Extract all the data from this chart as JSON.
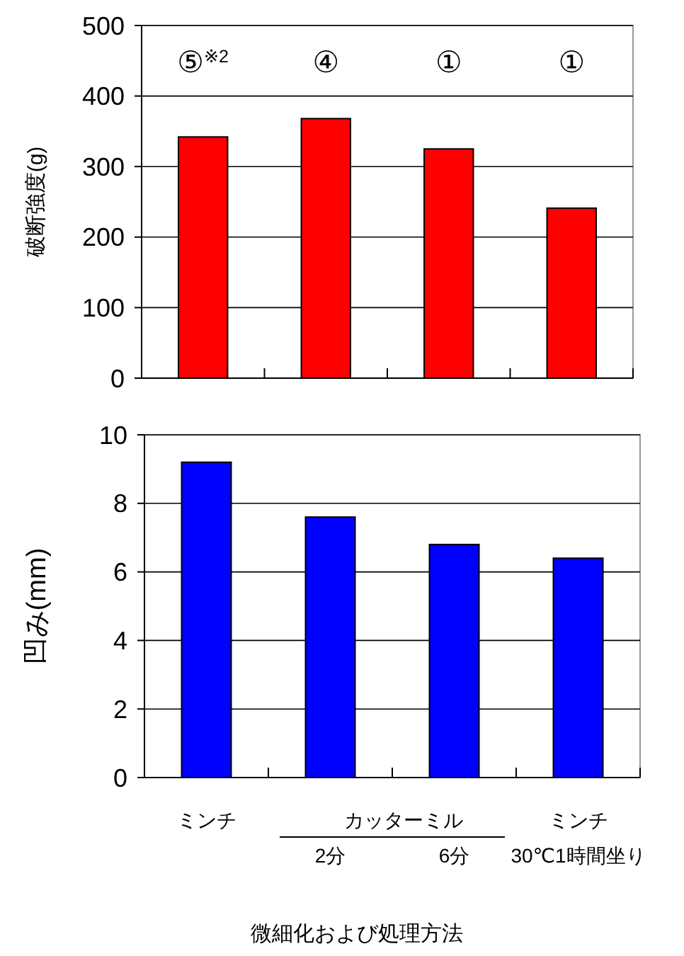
{
  "chart_data": [
    {
      "type": "bar",
      "ylabel": "破断強度(g)",
      "categories": [
        null,
        null,
        null,
        null
      ],
      "values": [
        342,
        368,
        325,
        241
      ],
      "color": "#ff0000",
      "annotations": [
        "⑤$^{※2}$",
        "④",
        "①",
        "①"
      ],
      "ylim": [
        0,
        500
      ],
      "yticks": [
        0,
        100,
        200,
        300,
        400,
        500
      ],
      "grid": "y",
      "tick_labels": "y"
    },
    {
      "type": "bar",
      "ylabel": "凹み(mm)",
      "xlabel": "微細化および処理方法",
      "categories": [
        "ミンチ",
        "2分",
        "6分",
        "ミンチ\n30℃1時間坐り"
      ],
      "values": [
        9.2,
        7.6,
        6.8,
        6.4
      ],
      "color": "#0000ff",
      "ylim": [
        0,
        10
      ],
      "yticks": [
        0,
        2,
        4,
        6,
        8,
        10
      ],
      "grid": "y",
      "annotations": [
        "カッターミル"
      ]
    }
  ]
}
